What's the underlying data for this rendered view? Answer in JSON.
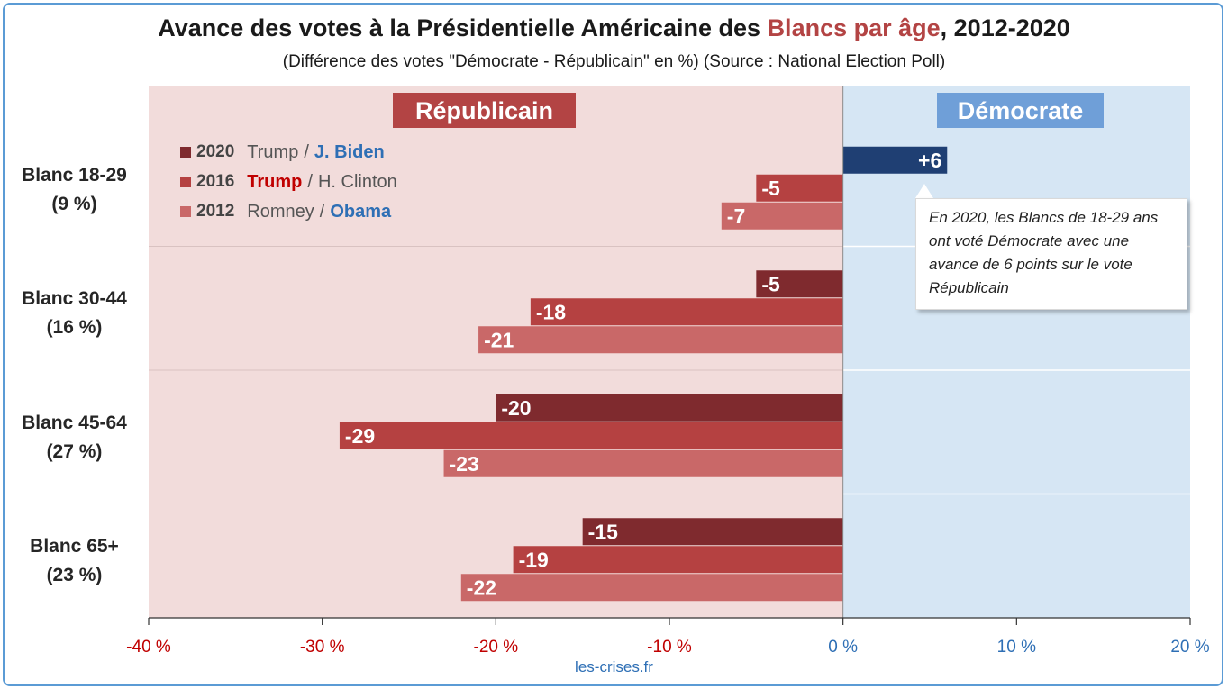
{
  "title": {
    "part1": "Avance des votes à la Présidentielle Américaine des ",
    "highlight": "Blancs par âge",
    "part2": ", 2012-2020"
  },
  "subtitle": "(Différence des votes \"Démocrate - Républicain\" en %) (Source : National Election Poll)",
  "side_labels": {
    "rep": "Républicain",
    "dem": "Démocrate"
  },
  "legend": [
    {
      "year": "2020",
      "rep_name": "Trump",
      "sep": "/",
      "dem_name": "J. Biden",
      "winner": "dem",
      "color": "#7f2a2e"
    },
    {
      "year": "2016",
      "rep_name": "Trump",
      "sep": "/",
      "dem_name": "H. Clinton",
      "winner": "rep",
      "color": "#b54141"
    },
    {
      "year": "2012",
      "rep_name": "Romney",
      "sep": "/",
      "dem_name": "Obama",
      "winner": "dem",
      "color": "#c96868"
    }
  ],
  "annotation": "En 2020, les Blancs de 18-29 ans ont voté Démocrate avec une avance de 6 points sur le vote Républicain",
  "footer": "les-crises.fr",
  "colors": {
    "rep_bg": "#f2dcdb",
    "dem_bg": "#d6e6f4",
    "rep_label_bg": "#b34444",
    "dem_label_bg": "#6f9fd8",
    "dem_bar": "#1f3f73",
    "bar_2020": "#7f2a2e",
    "bar_2016": "#b54141",
    "bar_2012": "#c96868",
    "rep_tick": "#c00000",
    "dem_tick": "#2e6fb5"
  },
  "chart_data": {
    "type": "bar",
    "orientation": "horizontal",
    "categories": [
      "Blanc 18-29\n(9 %)",
      "Blanc 30-44\n(16 %)",
      "Blanc 45-64\n(27 %)",
      "Blanc 65+\n(23 %)"
    ],
    "category_lines": [
      [
        "Blanc 18-29",
        "(9 %)"
      ],
      [
        "Blanc 30-44",
        "(16 %)"
      ],
      [
        "Blanc 45-64",
        "(27 %)"
      ],
      [
        "Blanc 65+",
        "(23 %)"
      ]
    ],
    "series": [
      {
        "name": "2020",
        "values": [
          6,
          -5,
          -20,
          -15
        ],
        "labels": [
          "+6",
          "-5",
          "-20",
          "-15"
        ]
      },
      {
        "name": "2016",
        "values": [
          -5,
          -18,
          -29,
          -19
        ],
        "labels": [
          "-5",
          "-18",
          "-29",
          "-19"
        ]
      },
      {
        "name": "2012",
        "values": [
          -7,
          -21,
          -23,
          -22
        ],
        "labels": [
          "-7",
          "-21",
          "-23",
          "-22"
        ]
      }
    ],
    "xlim": [
      -40,
      20
    ],
    "xticks": [
      -40,
      -30,
      -20,
      -10,
      0,
      10,
      20
    ],
    "xtick_labels": [
      "-40 %",
      "-30 %",
      "-20 %",
      "-10 %",
      "0 %",
      "10 %",
      "20 %"
    ],
    "grid": false,
    "legend_position": "top-left"
  }
}
